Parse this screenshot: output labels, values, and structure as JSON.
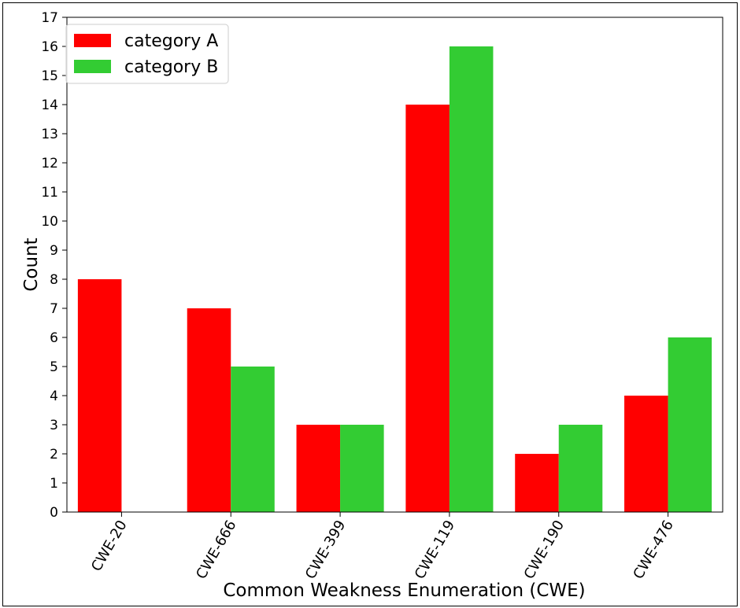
{
  "chart_data": {
    "type": "bar",
    "categories": [
      "CWE-20",
      "CWE-666",
      "CWE-399",
      "CWE-119",
      "CWE-190",
      "CWE-476"
    ],
    "series": [
      {
        "name": "category A",
        "values": [
          8,
          7,
          3,
          14,
          2,
          4
        ],
        "color": "#ff0000"
      },
      {
        "name": "category B",
        "values": [
          0,
          5,
          3,
          16,
          3,
          6
        ],
        "color": "#33cc33"
      }
    ],
    "xlabel": "Common Weakness Enumeration (CWE)",
    "ylabel": "Count",
    "ylim": [
      0,
      17
    ],
    "yticks": [
      0,
      1,
      2,
      3,
      4,
      5,
      6,
      7,
      8,
      9,
      10,
      11,
      12,
      13,
      14,
      15,
      16,
      17
    ],
    "grid": false,
    "legend_position": "top-left",
    "xtick_rotation": 60
  }
}
